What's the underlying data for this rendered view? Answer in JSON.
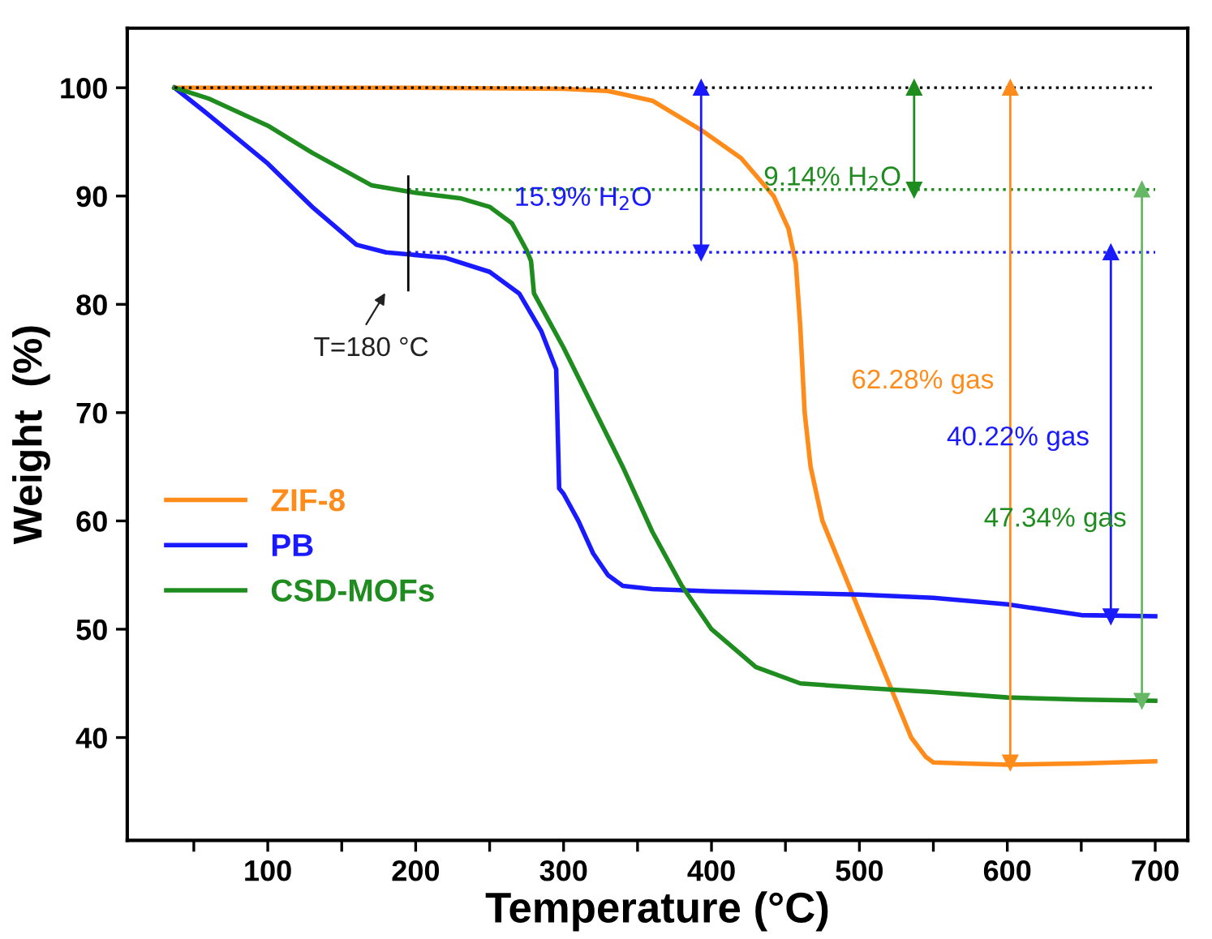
{
  "chart_data": {
    "type": "line",
    "xlabel": "Temperature (°C)",
    "ylabel": "Weight  (%)",
    "xlim": [
      5,
      722
    ],
    "ylim": [
      30.5,
      105.5
    ],
    "xticks": [
      {
        "value": 50,
        "label": null
      },
      100,
      {
        "value": 150,
        "label": null
      },
      200,
      {
        "value": 250,
        "label": null
      },
      300,
      {
        "value": 350,
        "label": null
      },
      400,
      {
        "value": 450,
        "label": null
      },
      500,
      {
        "value": 550,
        "label": null
      },
      600,
      {
        "value": 650,
        "label": null
      },
      700
    ],
    "yticks": [
      40,
      50,
      60,
      70,
      80,
      90,
      100
    ],
    "grid": false,
    "legend": "left",
    "line_style": "solid",
    "marker": "none",
    "series": [
      {
        "name": "ZIF-8",
        "color": "#ff8c1a",
        "x": [
          37,
          100,
          200,
          300,
          330,
          360,
          393,
          420,
          442,
          452,
          457,
          460,
          463,
          467,
          475,
          490,
          505,
          520,
          535,
          545,
          550,
          570,
          600,
          650,
          700
        ],
        "values": [
          100,
          100,
          100,
          99.9,
          99.7,
          98.8,
          96.1,
          93.5,
          90,
          87,
          83.8,
          78,
          70,
          65,
          60,
          55,
          50,
          45,
          40,
          38.2,
          37.7,
          37.6,
          37.5,
          37.6,
          37.8
        ]
      },
      {
        "name": "PB",
        "color": "#1a1aff",
        "x": [
          37,
          60,
          100,
          130,
          160,
          180,
          220,
          250,
          270,
          285,
          295,
          297,
          300,
          310,
          320,
          330,
          340,
          360,
          400,
          500,
          550,
          600,
          650,
          700
        ],
        "values": [
          100,
          97.5,
          93,
          89,
          85.5,
          84.8,
          84.3,
          83,
          81,
          77.5,
          74,
          63,
          62.5,
          60,
          57,
          55,
          54,
          53.7,
          53.5,
          53.2,
          52.9,
          52.3,
          51.3,
          51.2
        ]
      },
      {
        "name": "CSD-MOFs",
        "color": "#1e8c1e",
        "x": [
          37,
          60,
          100,
          130,
          150,
          170,
          200,
          230,
          250,
          265,
          275,
          278,
          280,
          290,
          300,
          320,
          340,
          360,
          380,
          400,
          430,
          460,
          500,
          550,
          600,
          650,
          700
        ],
        "values": [
          100,
          99,
          96.5,
          94,
          92.5,
          91,
          90.3,
          89.8,
          89,
          87.5,
          85,
          84,
          81,
          78.5,
          76,
          70.5,
          65,
          59,
          54,
          50,
          46.5,
          45,
          44.6,
          44.2,
          43.7,
          43.5,
          43.4
        ]
      },
      {
        "color": "#000000",
        "line_style": "dotted",
        "x": [
          37,
          700
        ],
        "values": [
          100,
          100
        ]
      },
      {
        "color": "#1e8c1e",
        "line_style": "dotted",
        "x": [
          195,
          700
        ],
        "values": [
          90.6,
          90.6
        ]
      },
      {
        "color": "#1a1aff",
        "line_style": "dotted",
        "x": [
          195,
          700
        ],
        "values": [
          84.8,
          84.8
        ]
      },
      {
        "color": "#000000",
        "x": [
          195,
          195
        ],
        "values": [
          91.8,
          81.3
        ]
      },
      {
        "color": "#1a1aff",
        "marker": "triangle",
        "x": [
          393,
          393
        ],
        "values": [
          100,
          84.8
        ]
      },
      {
        "color": "#1e8c1e",
        "marker": "triangle",
        "x": [
          537,
          537
        ],
        "values": [
          100,
          90.6
        ]
      },
      {
        "color": "#ff8c1a",
        "marker": "triangle",
        "x": [
          602,
          602
        ],
        "values": [
          100,
          37.7
        ]
      },
      {
        "color": "#1a1aff",
        "marker": "triangle",
        "x": [
          670,
          670
        ],
        "values": [
          84.8,
          51.2
        ]
      },
      {
        "color": "#66b866",
        "marker": "triangle",
        "x": [
          691,
          691
        ],
        "values": [
          90.6,
          43.4
        ]
      }
    ],
    "annotations": [
      "15.9% H$_{2}$O",
      "9.14% H$_{2}$O",
      "62.28% gas",
      "40.22% gas",
      "47.34% gas",
      "T=180 °C"
    ]
  }
}
